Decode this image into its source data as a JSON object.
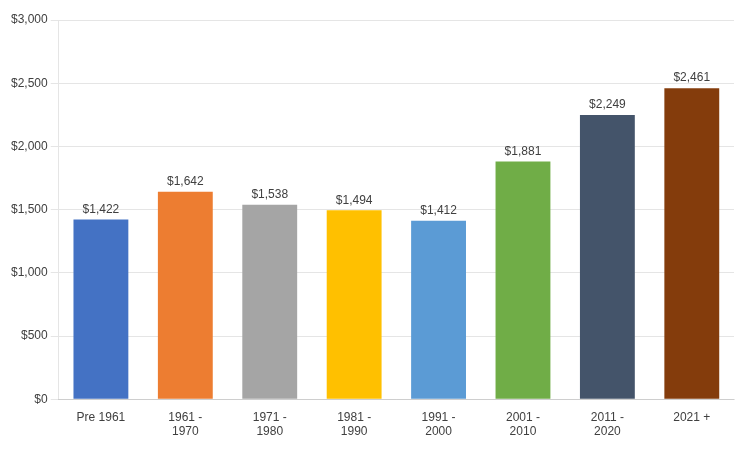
{
  "chart_data": {
    "type": "bar",
    "categories": [
      "Pre 1961",
      "1961 -\n1970",
      "1971 -\n1980",
      "1981 -\n1990",
      "1991 -\n2000",
      "2001 -\n2010",
      "2011 -\n2020",
      "2021 +"
    ],
    "values": [
      1422,
      1642,
      1538,
      1494,
      1412,
      1881,
      2249,
      2461
    ],
    "value_labels": [
      "$1,422",
      "$1,642",
      "$1,538",
      "$1,494",
      "$1,412",
      "$1,881",
      "$2,249",
      "$2,461"
    ],
    "colors": [
      "#4472C4",
      "#ED7D31",
      "#A5A5A5",
      "#FFC000",
      "#5B9BD5",
      "#70AD47",
      "#44546A",
      "#843C0C"
    ],
    "ylim": [
      0,
      3000
    ],
    "yticks": [
      {
        "value": 0,
        "label": "$0"
      },
      {
        "value": 500,
        "label": "$500"
      },
      {
        "value": 1000,
        "label": "$1,000"
      },
      {
        "value": 1500,
        "label": "$1,500"
      },
      {
        "value": 2000,
        "label": "$2,000"
      },
      {
        "value": 2500,
        "label": "$2,500"
      },
      {
        "value": 3000,
        "label": "$3,000"
      }
    ],
    "grid": true,
    "data_labels": true
  }
}
